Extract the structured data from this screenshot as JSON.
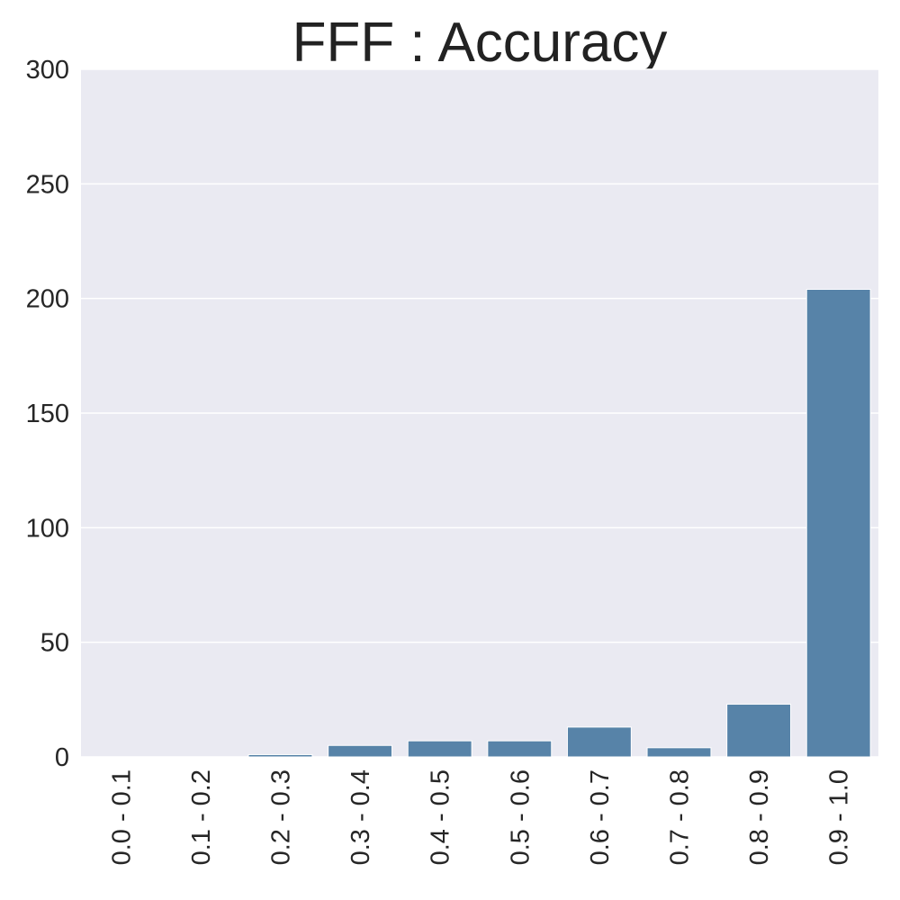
{
  "chart_data": {
    "type": "bar",
    "title": "FFF : Accuracy",
    "xlabel": "",
    "ylabel": "",
    "categories": [
      "0.0 - 0.1",
      "0.1 - 0.2",
      "0.2 - 0.3",
      "0.3 - 0.4",
      "0.4 - 0.5",
      "0.5 - 0.6",
      "0.6 - 0.7",
      "0.7 - 0.8",
      "0.8 - 0.9",
      "0.9 - 1.0"
    ],
    "values": [
      0,
      0,
      1,
      5,
      7,
      7,
      13,
      4,
      23,
      204
    ],
    "ylim": [
      0,
      300
    ],
    "yticks": [
      0,
      50,
      100,
      150,
      200,
      250,
      300
    ],
    "grid": true,
    "colors": {
      "bar": "#5783a8",
      "background": "#eaeaf2",
      "grid": "#ffffff"
    }
  }
}
